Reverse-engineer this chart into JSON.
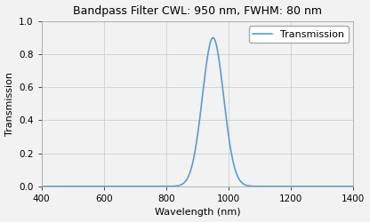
{
  "title": "Bandpass Filter CWL: 950 nm, FWHM: 80 nm",
  "xlabel": "Wavelength (nm)",
  "ylabel": "Transmission",
  "legend_label": "Transmission",
  "cwl": 950,
  "fwhm": 80,
  "peak_transmission": 0.9,
  "x_min": 400,
  "x_max": 1400,
  "y_min": 0.0,
  "y_max": 1.0,
  "x_ticks": [
    400,
    600,
    800,
    1000,
    1200,
    1400
  ],
  "y_ticks": [
    0.0,
    0.2,
    0.4,
    0.6,
    0.8,
    1.0
  ],
  "line_color": "#5b9bd5",
  "background_color": "#f2f2f2",
  "plot_bg_color": "#f2f2f2",
  "grid_color": "#d0d0d0",
  "title_fontsize": 9,
  "axis_label_fontsize": 8,
  "tick_fontsize": 7.5,
  "legend_fontsize": 8,
  "line_width": 1.2
}
